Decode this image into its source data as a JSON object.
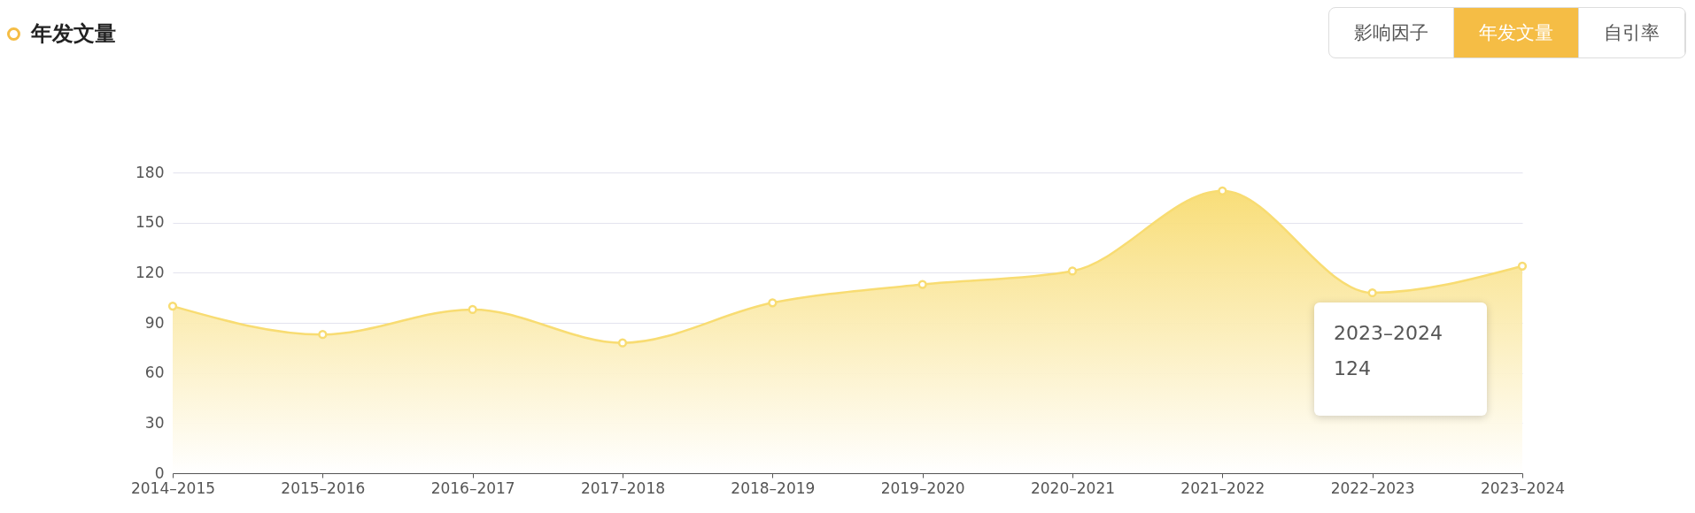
{
  "chart_data": {
    "type": "area",
    "title": "年发文量",
    "categories": [
      "2014–2015",
      "2015–2016",
      "2016–2017",
      "2017–2018",
      "2018–2019",
      "2019–2020",
      "2020–2021",
      "2021–2022",
      "2022–2023",
      "2023–2024"
    ],
    "series": [
      {
        "color": "#f8dc72",
        "values": [
          100,
          83,
          98,
          78,
          102,
          113,
          121,
          169,
          108,
          124
        ]
      }
    ],
    "ylim": [
      0,
      180
    ],
    "yticks": [
      0,
      30,
      60,
      90,
      120,
      150,
      180
    ],
    "grid": "y",
    "marker": "circle",
    "annotations": [
      "影响因子",
      "年发文量",
      "自引率",
      "2023–2024",
      "124"
    ]
  }
}
